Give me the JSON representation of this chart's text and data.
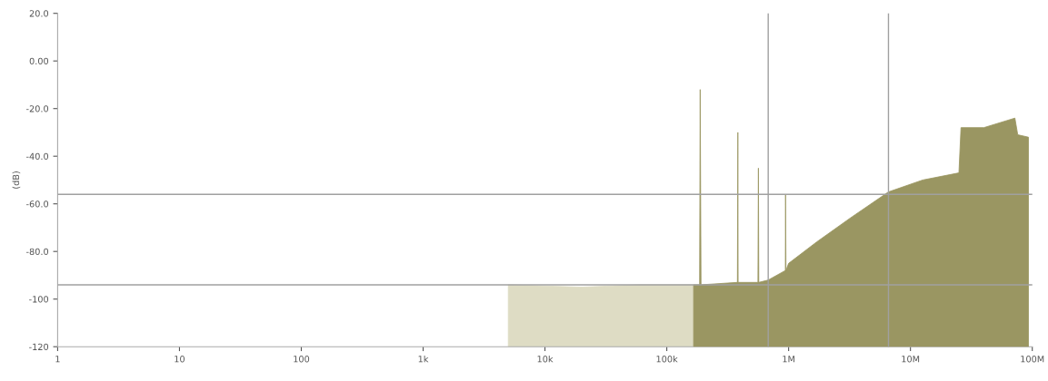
{
  "chart_data": {
    "type": "area",
    "ylabel": "(dB)",
    "log": "x",
    "xlim": [
      1,
      100000000
    ],
    "ylim": [
      -120,
      20
    ],
    "xticks": [
      1,
      10,
      100,
      {
        "value": 1000,
        "label": "1k"
      },
      {
        "value": 10000,
        "label": "10k"
      },
      {
        "value": 100000,
        "label": "100k"
      },
      {
        "value": 1000000,
        "label": "1M"
      },
      {
        "value": 10000000,
        "label": "10M"
      },
      {
        "value": 100000000,
        "label": "100M"
      }
    ],
    "yticks": [
      {
        "value": 20,
        "label": "20.0"
      },
      {
        "value": 0,
        "label": "0.00"
      },
      {
        "value": -20,
        "label": "-20.0"
      },
      {
        "value": -40,
        "label": "-40.0"
      },
      {
        "value": -60,
        "label": "-60.0"
      },
      {
        "value": -80,
        "label": "-80.0"
      },
      -100,
      -120
    ],
    "grid": false,
    "series": [
      {
        "color": "#dedcc4",
        "x": [
          5000,
          5000,
          20000,
          60000,
          166000,
          166000
        ],
        "values": [
          -120,
          -94,
          -95,
          -94,
          -94,
          -120
        ]
      },
      {
        "color": "#9a9662",
        "x": [
          166000,
          166000,
          186000,
          188000,
          191000,
          380000,
          383000,
          385000,
          560000,
          565000,
          569000,
          680000,
          940000,
          944000,
          951000,
          1000000,
          1700000,
          3200000,
          6600000,
          12600000,
          25000000,
          26000000,
          40000000,
          72000000,
          76000000,
          93000000,
          93000000
        ],
        "values": [
          -120,
          -94,
          -94,
          -12,
          -94,
          -93,
          -30,
          -93,
          -93,
          -45,
          -93,
          -92,
          -88,
          -56,
          -88,
          -85,
          -76,
          -66,
          -55,
          -50,
          -47,
          -28,
          -28,
          -24,
          -31,
          -32,
          -120
        ]
      }
    ],
    "ref_lines": [
      {
        "axis": "y",
        "value": -56,
        "color": "#a0a0a0"
      },
      {
        "axis": "y",
        "value": -94,
        "color": "#a0a0a0"
      },
      {
        "axis": "x",
        "value": 680000,
        "color": "#a0a0a0"
      },
      {
        "axis": "x",
        "value": 6600000,
        "color": "#a0a0a0"
      }
    ]
  }
}
